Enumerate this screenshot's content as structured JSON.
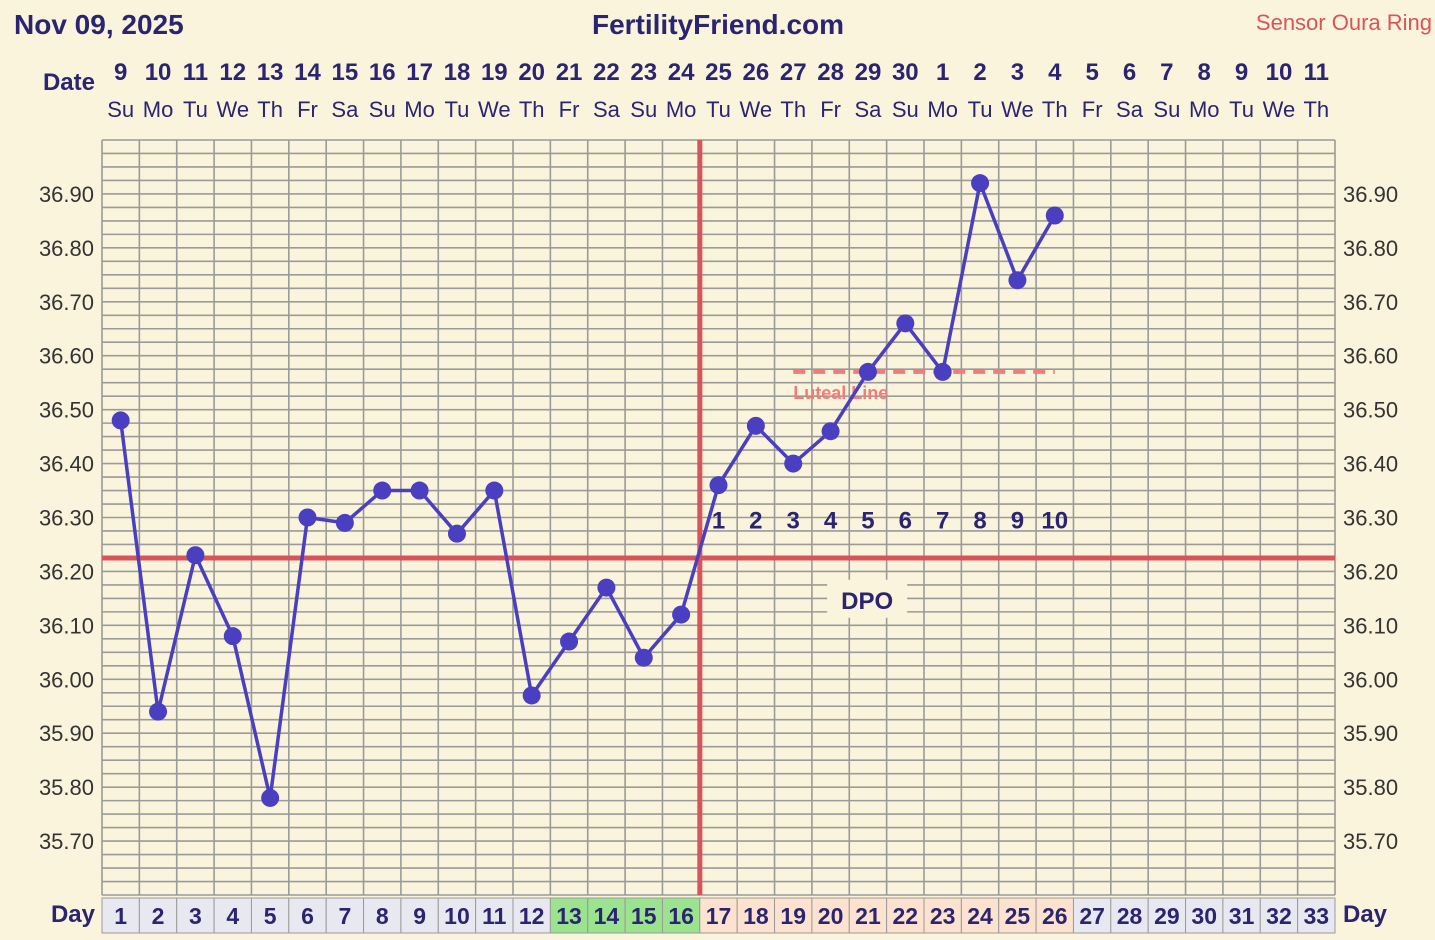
{
  "header": {
    "date": "Nov 09, 2025",
    "site": "FertilityFriend.com",
    "sensor": "Sensor Oura Ring"
  },
  "labels": {
    "date_row": "Date",
    "day_row": "Day",
    "day_row_right": "Day",
    "dpo": "DPO",
    "luteal_line": "Luteal Line"
  },
  "colors": {
    "background": "#faf4dc",
    "grid": "#9a9a9a",
    "temp_line": "#4a3fc0",
    "coverline": "#d9545a",
    "luteal": "#f07c7c",
    "fertile_cell": "#9be38e",
    "luteal_cell": "#fde3cf",
    "normal_cell": "#e8e8f0",
    "text_dark": "#2b2470"
  },
  "chart_data": {
    "type": "line",
    "title": "FertilityFriend.com",
    "ylabel": "",
    "xlabel": "Day",
    "ylim": [
      35.6,
      37.0
    ],
    "yticks": [
      "36.90",
      "36.80",
      "36.70",
      "36.60",
      "36.50",
      "36.40",
      "36.30",
      "36.20",
      "36.10",
      "36.00",
      "35.90",
      "35.80",
      "35.70"
    ],
    "cycle_days": [
      "1",
      "2",
      "3",
      "4",
      "5",
      "6",
      "7",
      "8",
      "9",
      "10",
      "11",
      "12",
      "13",
      "14",
      "15",
      "16",
      "17",
      "18",
      "19",
      "20",
      "21",
      "22",
      "23",
      "24",
      "25",
      "26",
      "27",
      "28",
      "29",
      "30",
      "31",
      "32",
      "33"
    ],
    "dates": [
      "9",
      "10",
      "11",
      "12",
      "13",
      "14",
      "15",
      "16",
      "17",
      "18",
      "19",
      "20",
      "21",
      "22",
      "23",
      "24",
      "25",
      "26",
      "27",
      "28",
      "29",
      "30",
      "1",
      "2",
      "3",
      "4",
      "5",
      "6",
      "7",
      "8",
      "9",
      "10",
      "11"
    ],
    "weekdays": [
      "Su",
      "Mo",
      "Tu",
      "We",
      "Th",
      "Fr",
      "Sa",
      "Su",
      "Mo",
      "Tu",
      "We",
      "Th",
      "Fr",
      "Sa",
      "Su",
      "Mo",
      "Tu",
      "We",
      "Th",
      "Fr",
      "Sa",
      "Su",
      "Mo",
      "Tu",
      "We",
      "Th",
      "Fr",
      "Sa",
      "Su",
      "Mo",
      "Tu",
      "We",
      "Th"
    ],
    "day_highlight": [
      "normal",
      "normal",
      "normal",
      "normal",
      "normal",
      "normal",
      "normal",
      "normal",
      "normal",
      "normal",
      "normal",
      "normal",
      "fertile",
      "fertile",
      "fertile",
      "fertile",
      "luteal",
      "luteal",
      "luteal",
      "luteal",
      "luteal",
      "luteal",
      "luteal",
      "luteal",
      "luteal",
      "luteal",
      "normal",
      "normal",
      "normal",
      "normal",
      "normal",
      "normal",
      "normal"
    ],
    "series": [
      {
        "x": [
          1,
          2,
          3,
          4,
          5,
          6,
          7,
          8,
          9,
          10,
          11,
          12,
          13,
          14,
          15,
          16,
          17,
          18,
          19,
          20,
          21,
          22,
          23,
          24,
          25,
          26
        ],
        "values": [
          36.48,
          35.94,
          36.23,
          36.08,
          35.78,
          36.3,
          36.29,
          36.35,
          36.35,
          36.27,
          36.35,
          35.97,
          36.07,
          36.17,
          36.04,
          36.12,
          36.36,
          36.47,
          36.4,
          36.46,
          36.57,
          36.66,
          36.57,
          36.92,
          36.74,
          36.86
        ]
      }
    ],
    "coverline": 36.225,
    "ovulation_day": 16,
    "luteal_line": {
      "value": 36.57,
      "from_day": 19,
      "to_day": 26
    },
    "dpo": {
      "days": [
        17,
        18,
        19,
        20,
        21,
        22,
        23,
        24,
        25,
        26
      ],
      "labels": [
        "1",
        "2",
        "3",
        "4",
        "5",
        "6",
        "7",
        "8",
        "9",
        "10"
      ]
    },
    "grid": true
  }
}
